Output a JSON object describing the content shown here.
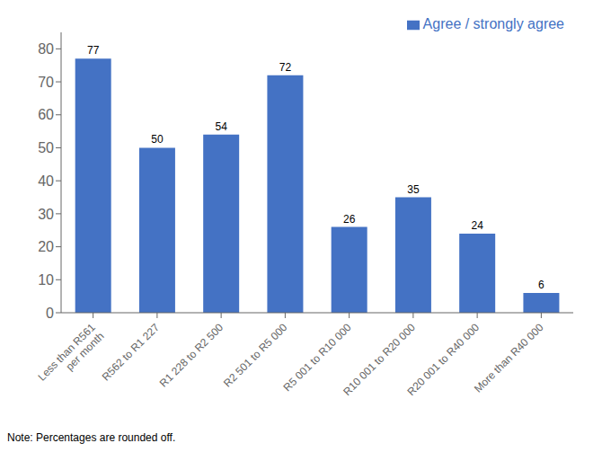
{
  "chart_data": {
    "type": "bar",
    "categories": [
      "Less than R561\nper month",
      "R562 to R1 227",
      "R1 228 to R2 500",
      "R2 501 to R5 000",
      "R5 001 to R10 000",
      "R10 001 to R20 000",
      "R20 001 to R40 000",
      "More than R40 000"
    ],
    "series": [
      {
        "name": "Agree / strongly agree",
        "color": "#4472c4",
        "values": [
          77,
          50,
          54,
          72,
          26,
          35,
          24,
          6
        ]
      }
    ],
    "ylim": [
      0,
      85
    ],
    "yticks": [
      0,
      10,
      20,
      30,
      40,
      50,
      60,
      70,
      80
    ],
    "grid": false,
    "legend": "upper right",
    "data_labels": true,
    "annotations": [
      "Note: Percentages are rounded off."
    ]
  }
}
